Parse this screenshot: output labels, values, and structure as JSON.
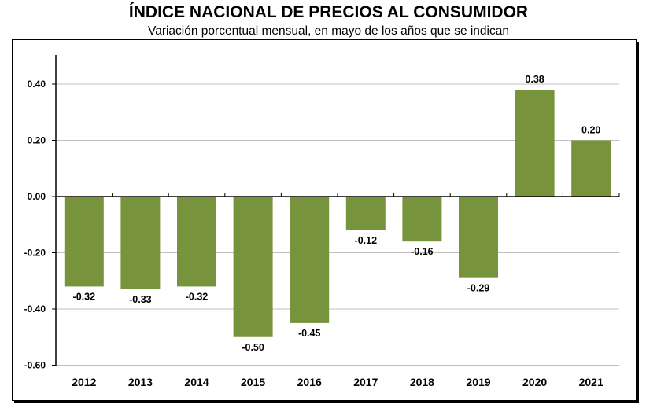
{
  "chart_data": {
    "type": "bar",
    "title": "ÍNDICE NACIONAL DE PRECIOS AL CONSUMIDOR",
    "subtitle": "Variación porcentual mensual, en mayo de los años que se indican",
    "categories": [
      "2012",
      "2013",
      "2014",
      "2015",
      "2016",
      "2017",
      "2018",
      "2019",
      "2020",
      "2021"
    ],
    "values": [
      -0.32,
      -0.33,
      -0.32,
      -0.5,
      -0.45,
      -0.12,
      -0.16,
      -0.29,
      0.38,
      0.2
    ],
    "value_labels": [
      "-0.32",
      "-0.33",
      "-0.32",
      "-0.50",
      "-0.45",
      "-0.12",
      "-0.16",
      "-0.29",
      "0.38",
      "0.20"
    ],
    "yticks": [
      "0.40",
      "0.20",
      "0.00",
      "-0.20",
      "-0.40",
      "-0.60"
    ],
    "ytick_values": [
      0.4,
      0.2,
      0.0,
      -0.2,
      -0.4,
      -0.6
    ],
    "ylim": [
      -0.6,
      0.5
    ],
    "bar_color": "#77933c",
    "grid": true
  }
}
